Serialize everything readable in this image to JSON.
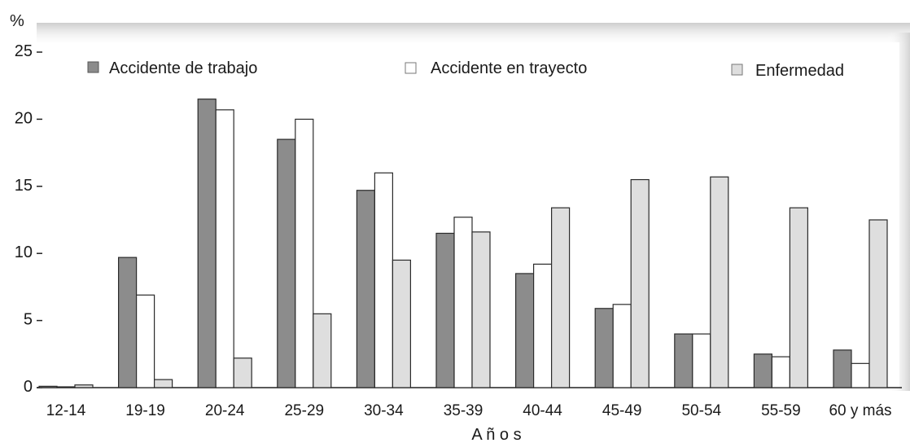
{
  "chart_data": {
    "type": "bar",
    "title": "",
    "ylabel": "%",
    "xlabel": "A ñ o s",
    "ylim": [
      0,
      25
    ],
    "yticks": [
      0,
      5,
      10,
      15,
      20,
      25
    ],
    "grid": false,
    "legend_position": "top",
    "categories": [
      "12-14",
      "19-19",
      "20-24",
      "25-29",
      "30-34",
      "35-39",
      "40-44",
      "45-49",
      "50-54",
      "55-59",
      "60 y más"
    ],
    "series": [
      {
        "name": "Accidente de trabajo",
        "color": "#8c8c8c",
        "values": [
          0.1,
          9.7,
          21.5,
          18.5,
          14.7,
          11.5,
          8.5,
          5.9,
          4.0,
          2.5,
          2.8
        ]
      },
      {
        "name": "Accidente en trayecto",
        "color": "#ffffff",
        "values": [
          0.0,
          6.9,
          20.7,
          20.0,
          16.0,
          12.7,
          9.2,
          6.2,
          4.0,
          2.3,
          1.8
        ]
      },
      {
        "name": "Enfermedad",
        "color": "#dedede",
        "values": [
          0.2,
          0.6,
          2.2,
          5.5,
          9.5,
          11.6,
          13.4,
          15.5,
          15.7,
          13.4,
          12.5
        ]
      }
    ]
  }
}
